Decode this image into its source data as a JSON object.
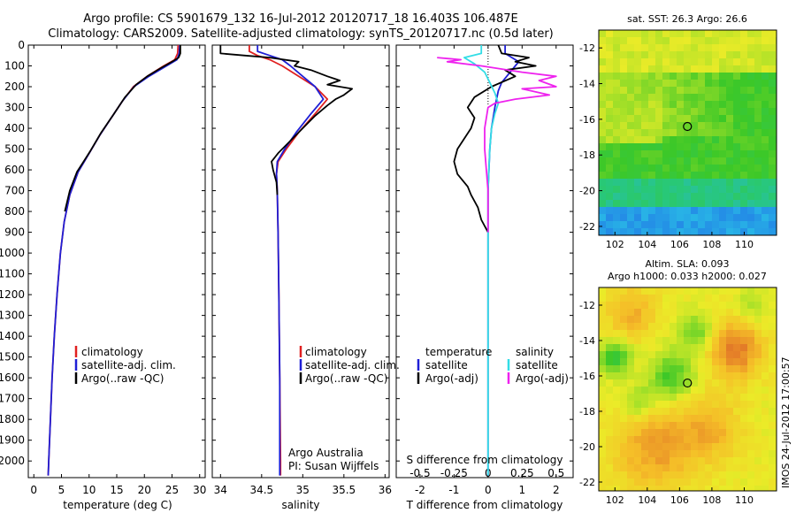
{
  "title": {
    "line1": "Argo profile: CS 5901679_132 16-Jul-2012 20120717_18 16.403S 106.487E",
    "line2": "Climatology: CARS2009. Satellite-adjusted climatology: synTS_20120717.nc (0.5d later)"
  },
  "footer": {
    "credit_line1": "Argo Australia",
    "credit_line2": "PI: Susan Wijffels",
    "stamp": "IMOS 24-Jul-2012 17:00:57"
  },
  "colors": {
    "climatology": "#e02020",
    "satellite": "#1f1fd6",
    "argo": "#000000",
    "sat_salinity": "#33dde6",
    "argo_salinity_adj": "#ee22ee"
  },
  "chart_data": [
    {
      "type": "line",
      "panel": "temperature",
      "xlabel": "temperature (deg C)",
      "xlim": [
        -1,
        31
      ],
      "xticks": [
        0,
        5,
        10,
        15,
        20,
        25,
        30
      ],
      "ylim": [
        2080,
        0
      ],
      "yticks": [
        0,
        100,
        200,
        300,
        400,
        500,
        600,
        700,
        800,
        900,
        1000,
        1100,
        1200,
        1300,
        1400,
        1500,
        1600,
        1700,
        1800,
        1900,
        2000
      ],
      "legend": [
        "climatology",
        "satellite-adj. clim.",
        "Argo(..raw -QC)"
      ],
      "legend_colors": [
        "#e02020",
        "#1f1fd6",
        "#000000"
      ],
      "series": [
        {
          "name": "climatology",
          "color": "#e02020",
          "points": [
            [
              26.1,
              0
            ],
            [
              26.0,
              40
            ],
            [
              25.5,
              70
            ],
            [
              23.5,
              100
            ],
            [
              20.5,
              150
            ],
            [
              18.0,
              200
            ],
            [
              16.0,
              270
            ],
            [
              14.0,
              350
            ],
            [
              12.0,
              430
            ],
            [
              10.0,
              520
            ],
            [
              8.0,
              610
            ],
            [
              6.5,
              720
            ],
            [
              5.5,
              850
            ],
            [
              4.8,
              1000
            ],
            [
              4.2,
              1200
            ],
            [
              3.7,
              1400
            ],
            [
              3.3,
              1600
            ],
            [
              3.0,
              1800
            ],
            [
              2.7,
              2000
            ],
            [
              2.6,
              2070
            ]
          ]
        },
        {
          "name": "satellite-adj. clim.",
          "color": "#1f1fd6",
          "points": [
            [
              26.4,
              0
            ],
            [
              26.3,
              40
            ],
            [
              25.9,
              70
            ],
            [
              24.0,
              100
            ],
            [
              20.8,
              150
            ],
            [
              18.1,
              200
            ],
            [
              16.0,
              270
            ],
            [
              14.0,
              350
            ],
            [
              12.0,
              430
            ],
            [
              10.0,
              520
            ],
            [
              8.0,
              610
            ],
            [
              6.5,
              720
            ],
            [
              5.5,
              850
            ],
            [
              4.8,
              1000
            ],
            [
              4.2,
              1200
            ],
            [
              3.7,
              1400
            ],
            [
              3.3,
              1600
            ],
            [
              3.0,
              1800
            ],
            [
              2.7,
              2000
            ],
            [
              2.6,
              2070
            ]
          ]
        },
        {
          "name": "Argo(..raw -QC)",
          "color": "#000000",
          "points": [
            [
              26.5,
              0
            ],
            [
              26.5,
              40
            ],
            [
              26.2,
              60
            ],
            [
              25.0,
              80
            ],
            [
              23.0,
              110
            ],
            [
              20.5,
              150
            ],
            [
              18.5,
              190
            ],
            [
              16.5,
              250
            ],
            [
              14.5,
              330
            ],
            [
              12.2,
              420
            ],
            [
              10.2,
              510
            ],
            [
              9.0,
              560
            ],
            [
              7.8,
              610
            ],
            [
              6.5,
              700
            ],
            [
              5.6,
              800
            ]
          ]
        }
      ]
    },
    {
      "type": "line",
      "panel": "salinity",
      "xlabel": "salinity",
      "xlim": [
        33.9,
        36.05
      ],
      "xticks": [
        34,
        34.5,
        35,
        35.5,
        36
      ],
      "ylim": [
        2080,
        0
      ],
      "legend": [
        "climatology",
        "satellite-adj. clim.",
        "Argo(..raw -QC)"
      ],
      "legend_colors": [
        "#e02020",
        "#1f1fd6",
        "#000000"
      ],
      "series": [
        {
          "name": "climatology",
          "color": "#e02020",
          "points": [
            [
              34.35,
              0
            ],
            [
              34.35,
              30
            ],
            [
              34.45,
              50
            ],
            [
              34.6,
              70
            ],
            [
              34.75,
              100
            ],
            [
              34.95,
              150
            ],
            [
              35.15,
              200
            ],
            [
              35.3,
              260
            ],
            [
              35.15,
              330
            ],
            [
              34.95,
              420
            ],
            [
              34.8,
              500
            ],
            [
              34.7,
              560
            ],
            [
              34.68,
              620
            ],
            [
              34.69,
              700
            ],
            [
              34.7,
              900
            ],
            [
              34.71,
              1200
            ],
            [
              34.72,
              1600
            ],
            [
              34.73,
              2000
            ],
            [
              34.73,
              2070
            ]
          ]
        },
        {
          "name": "satellite-adj. clim.",
          "color": "#1f1fd6",
          "points": [
            [
              34.45,
              0
            ],
            [
              34.45,
              30
            ],
            [
              34.6,
              50
            ],
            [
              34.75,
              70
            ],
            [
              34.85,
              100
            ],
            [
              35.0,
              150
            ],
            [
              35.15,
              200
            ],
            [
              35.25,
              260
            ],
            [
              35.1,
              330
            ],
            [
              34.92,
              420
            ],
            [
              34.78,
              500
            ],
            [
              34.69,
              560
            ],
            [
              34.68,
              620
            ],
            [
              34.69,
              700
            ],
            [
              34.7,
              900
            ],
            [
              34.71,
              1200
            ],
            [
              34.72,
              1600
            ],
            [
              34.72,
              2000
            ],
            [
              34.72,
              2070
            ]
          ]
        },
        {
          "name": "Argo(..raw -QC)",
          "color": "#000000",
          "points": [
            [
              34.0,
              0
            ],
            [
              34.0,
              40
            ],
            [
              34.3,
              50
            ],
            [
              34.6,
              60
            ],
            [
              34.95,
              80
            ],
            [
              34.9,
              100
            ],
            [
              35.1,
              120
            ],
            [
              35.3,
              150
            ],
            [
              35.45,
              170
            ],
            [
              35.3,
              190
            ],
            [
              35.6,
              210
            ],
            [
              35.5,
              240
            ],
            [
              35.4,
              260
            ],
            [
              35.3,
              290
            ],
            [
              35.15,
              340
            ],
            [
              35.0,
              400
            ],
            [
              34.85,
              460
            ],
            [
              34.7,
              520
            ],
            [
              34.62,
              560
            ],
            [
              34.64,
              600
            ],
            [
              34.68,
              660
            ],
            [
              34.69,
              720
            ]
          ]
        }
      ]
    },
    {
      "type": "line",
      "panel": "differences",
      "xlabel": "T difference from climatology",
      "xlabel_top": "S difference from climatology",
      "xlim": [
        -2.7,
        2.5
      ],
      "xticks": [
        -2,
        -1,
        0,
        1,
        2
      ],
      "xticks_top": [
        -0.5,
        -0.25,
        0,
        0.25,
        0.5
      ],
      "ylim": [
        2080,
        0
      ],
      "legend_headers": [
        "temperature",
        "salinity"
      ],
      "legend": [
        "satellite",
        "Argo(-adj)",
        "satellite",
        "Argo(-adj)"
      ],
      "legend_colors": [
        "#1f1fd6",
        "#000000",
        "#33dde6",
        "#ee22ee"
      ],
      "series": [
        {
          "name": "T satellite",
          "color": "#1f1fd6",
          "points": [
            [
              0.5,
              0
            ],
            [
              0.5,
              40
            ],
            [
              0.7,
              60
            ],
            [
              0.9,
              80
            ],
            [
              0.8,
              100
            ],
            [
              0.6,
              140
            ],
            [
              0.4,
              180
            ],
            [
              0.3,
              220
            ],
            [
              0.2,
              300
            ],
            [
              0.1,
              400
            ],
            [
              0.05,
              500
            ],
            [
              0.0,
              700
            ],
            [
              0.0,
              1000
            ],
            [
              0.0,
              2000
            ],
            [
              0.0,
              2070
            ]
          ]
        },
        {
          "name": "T Argo(-adj)",
          "color": "#000000",
          "points": [
            [
              0.3,
              0
            ],
            [
              0.4,
              40
            ],
            [
              1.2,
              60
            ],
            [
              0.8,
              80
            ],
            [
              1.4,
              100
            ],
            [
              0.5,
              120
            ],
            [
              0.8,
              150
            ],
            [
              0.1,
              200
            ],
            [
              -0.4,
              250
            ],
            [
              -0.6,
              300
            ],
            [
              -0.4,
              350
            ],
            [
              -0.5,
              400
            ],
            [
              -0.7,
              450
            ],
            [
              -0.9,
              500
            ],
            [
              -1.0,
              560
            ],
            [
              -0.9,
              620
            ],
            [
              -0.6,
              680
            ],
            [
              -0.5,
              720
            ],
            [
              -0.3,
              780
            ],
            [
              -0.2,
              840
            ],
            [
              0.0,
              900
            ]
          ]
        },
        {
          "name": "S satellite",
          "color": "#33dde6",
          "points": [
            [
              -0.2,
              0
            ],
            [
              -0.2,
              40
            ],
            [
              -0.7,
              60
            ],
            [
              -0.4,
              90
            ],
            [
              -0.1,
              130
            ],
            [
              0.05,
              180
            ],
            [
              0.2,
              230
            ],
            [
              0.3,
              280
            ],
            [
              0.2,
              330
            ],
            [
              0.1,
              400
            ],
            [
              0.05,
              500
            ],
            [
              0.0,
              700
            ],
            [
              0.0,
              2070
            ]
          ]
        },
        {
          "name": "S Argo(-adj)",
          "color": "#ee22ee",
          "points": [
            [
              -1.5,
              60
            ],
            [
              -0.8,
              70
            ],
            [
              -1.2,
              80
            ],
            [
              -0.2,
              100
            ],
            [
              1.0,
              130
            ],
            [
              2.0,
              150
            ],
            [
              1.5,
              170
            ],
            [
              2.0,
              200
            ],
            [
              1.0,
              210
            ],
            [
              1.8,
              240
            ],
            [
              0.8,
              260
            ],
            [
              0.2,
              280
            ],
            [
              0.0,
              300
            ],
            [
              -0.1,
              400
            ],
            [
              -0.1,
              500
            ],
            [
              -0.05,
              600
            ],
            [
              0.0,
              700
            ],
            [
              0.0,
              900
            ]
          ]
        }
      ]
    },
    {
      "type": "heatmap",
      "panel": "sst-map",
      "title": "sat. SST: 26.3 Argo: 26.6",
      "xlim": [
        101,
        112
      ],
      "ylim": [
        -22.5,
        -11
      ],
      "xticks": [
        102,
        104,
        106,
        108,
        110
      ],
      "yticks": [
        -12,
        -14,
        -16,
        -18,
        -20,
        -22
      ],
      "marker": {
        "lon": 106.487,
        "lat": -16.403
      }
    },
    {
      "type": "heatmap",
      "panel": "sla-map",
      "title_line1": "Altim. SLA: 0.093",
      "title_line2": "Argo h1000: 0.033 h2000: 0.027",
      "xlim": [
        101,
        112
      ],
      "ylim": [
        -22.5,
        -11
      ],
      "xticks": [
        102,
        104,
        106,
        108,
        110
      ],
      "yticks": [
        -12,
        -14,
        -16,
        -18,
        -20,
        -22
      ],
      "marker": {
        "lon": 106.487,
        "lat": -16.403
      }
    }
  ]
}
